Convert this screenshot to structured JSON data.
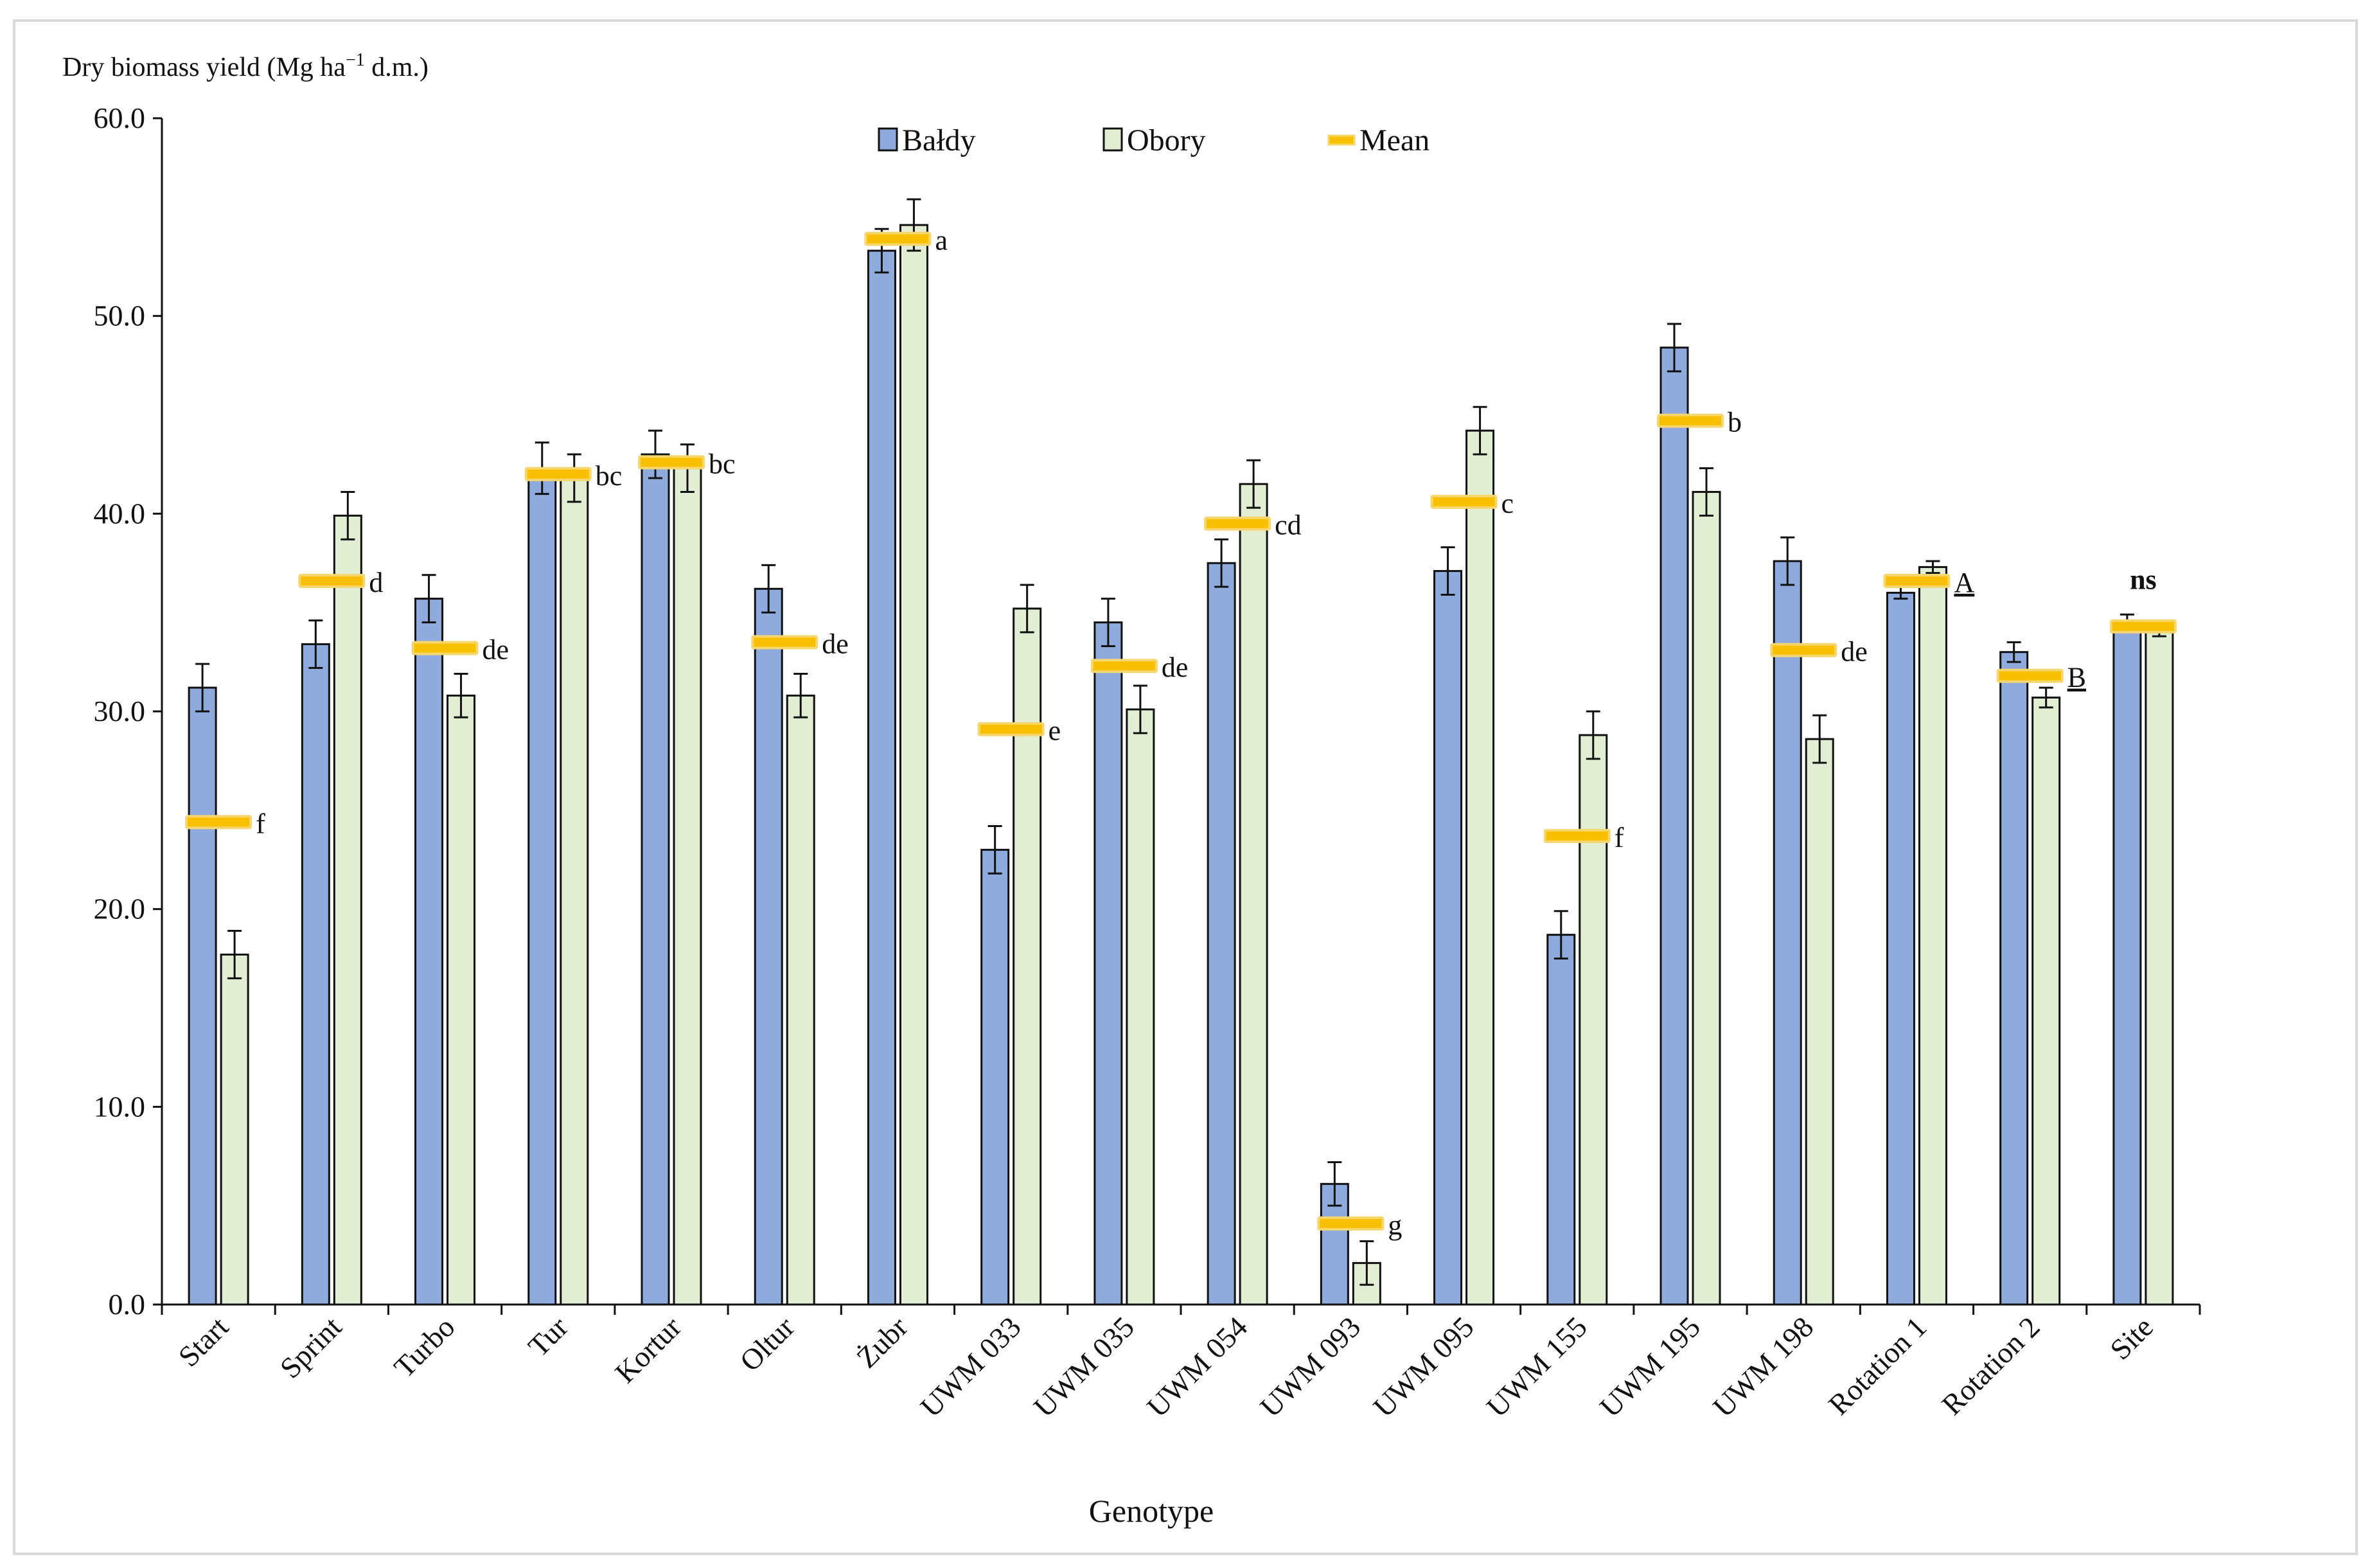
{
  "chart_data": {
    "type": "bar",
    "ylabel_prefix": "Dry biomass yield (Mg ha",
    "ylabel_sup": "−1",
    "ylabel_suffix": " d.m.)",
    "xlabel": "Genotype",
    "ylim": [
      0,
      60
    ],
    "yticks": [
      "0.0",
      "10.0",
      "20.0",
      "30.0",
      "40.0",
      "50.0",
      "60.0"
    ],
    "grid": false,
    "legend": {
      "position": "top-center",
      "items": [
        "Bałdy",
        "Obory",
        "Mean"
      ]
    },
    "categories": [
      "Start",
      "Sprint",
      "Turbo",
      "Tur",
      "Kortur",
      "Oltur",
      "Żubr",
      "UWM 033",
      "UWM 035",
      "UWM 054",
      "UWM 093",
      "UWM 095",
      "UWM 155",
      "UWM 195",
      "UWM 198",
      "Rotation 1",
      "Rotation 2",
      "Site"
    ],
    "series": [
      {
        "name": "Bałdy",
        "color": "#8faadc",
        "values": [
          31.2,
          33.4,
          35.7,
          42.3,
          43.0,
          36.2,
          53.3,
          23.0,
          34.5,
          37.5,
          6.1,
          37.1,
          18.7,
          48.4,
          37.6,
          36.0,
          33.0,
          34.5
        ],
        "errors": [
          1.2,
          1.2,
          1.2,
          1.3,
          1.2,
          1.2,
          1.1,
          1.2,
          1.2,
          1.2,
          1.1,
          1.2,
          1.2,
          1.2,
          1.2,
          0.3,
          0.5,
          0.4
        ]
      },
      {
        "name": "Obory",
        "color": "#e2eed3",
        "values": [
          17.7,
          39.9,
          30.8,
          41.8,
          42.3,
          30.8,
          54.6,
          35.2,
          30.1,
          41.5,
          2.1,
          44.2,
          28.8,
          41.1,
          28.6,
          37.3,
          30.7,
          34.2
        ],
        "errors": [
          1.2,
          1.2,
          1.1,
          1.2,
          1.2,
          1.1,
          1.3,
          1.2,
          1.2,
          1.2,
          1.1,
          1.2,
          1.2,
          1.2,
          1.2,
          0.3,
          0.5,
          0.4
        ]
      }
    ],
    "mean": {
      "name": "Mean",
      "color": "#f9c000",
      "values": [
        24.4,
        36.6,
        33.2,
        42.0,
        42.6,
        33.5,
        53.9,
        29.1,
        32.3,
        39.5,
        4.1,
        40.6,
        23.7,
        44.7,
        33.1,
        36.6,
        31.8,
        34.3
      ]
    },
    "annotations": [
      "f",
      "d",
      "de",
      "bc",
      "bc",
      "de",
      "a",
      "e",
      "de",
      "cd",
      "g",
      "c",
      "f",
      "b",
      "de",
      "A",
      "B",
      "ns"
    ]
  }
}
